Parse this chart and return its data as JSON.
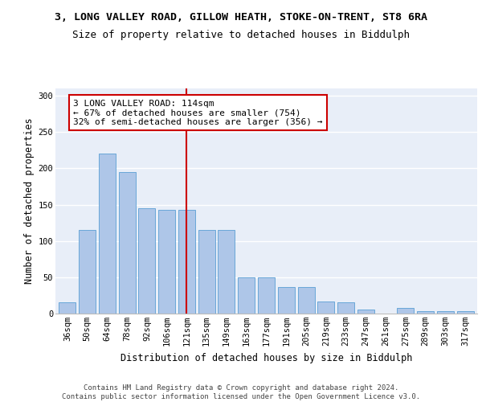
{
  "title_line1": "3, LONG VALLEY ROAD, GILLOW HEATH, STOKE-ON-TRENT, ST8 6RA",
  "title_line2": "Size of property relative to detached houses in Biddulph",
  "xlabel": "Distribution of detached houses by size in Biddulph",
  "ylabel": "Number of detached properties",
  "categories": [
    "36sqm",
    "50sqm",
    "64sqm",
    "78sqm",
    "92sqm",
    "106sqm",
    "121sqm",
    "135sqm",
    "149sqm",
    "163sqm",
    "177sqm",
    "191sqm",
    "205sqm",
    "219sqm",
    "233sqm",
    "247sqm",
    "261sqm",
    "275sqm",
    "289sqm",
    "303sqm",
    "317sqm"
  ],
  "values": [
    15,
    115,
    220,
    195,
    145,
    143,
    143,
    115,
    115,
    50,
    50,
    36,
    37,
    17,
    16,
    5,
    0,
    8,
    3,
    3,
    3
  ],
  "bar_color": "#aec6e8",
  "bar_edge_color": "#5a9fd4",
  "vline_x": 6,
  "vline_color": "#cc0000",
  "annotation_text": "3 LONG VALLEY ROAD: 114sqm\n← 67% of detached houses are smaller (754)\n32% of semi-detached houses are larger (356) →",
  "annotation_box_color": "#ffffff",
  "annotation_box_edge_color": "#cc0000",
  "ylim": [
    0,
    310
  ],
  "yticks": [
    0,
    50,
    100,
    150,
    200,
    250,
    300
  ],
  "footer_text": "Contains HM Land Registry data © Crown copyright and database right 2024.\nContains public sector information licensed under the Open Government Licence v3.0.",
  "bg_color": "#e8eef8",
  "grid_color": "#ffffff",
  "title_fontsize": 9.5,
  "subtitle_fontsize": 9,
  "axis_label_fontsize": 8.5,
  "tick_fontsize": 7.5,
  "annotation_fontsize": 8,
  "footer_fontsize": 6.5
}
